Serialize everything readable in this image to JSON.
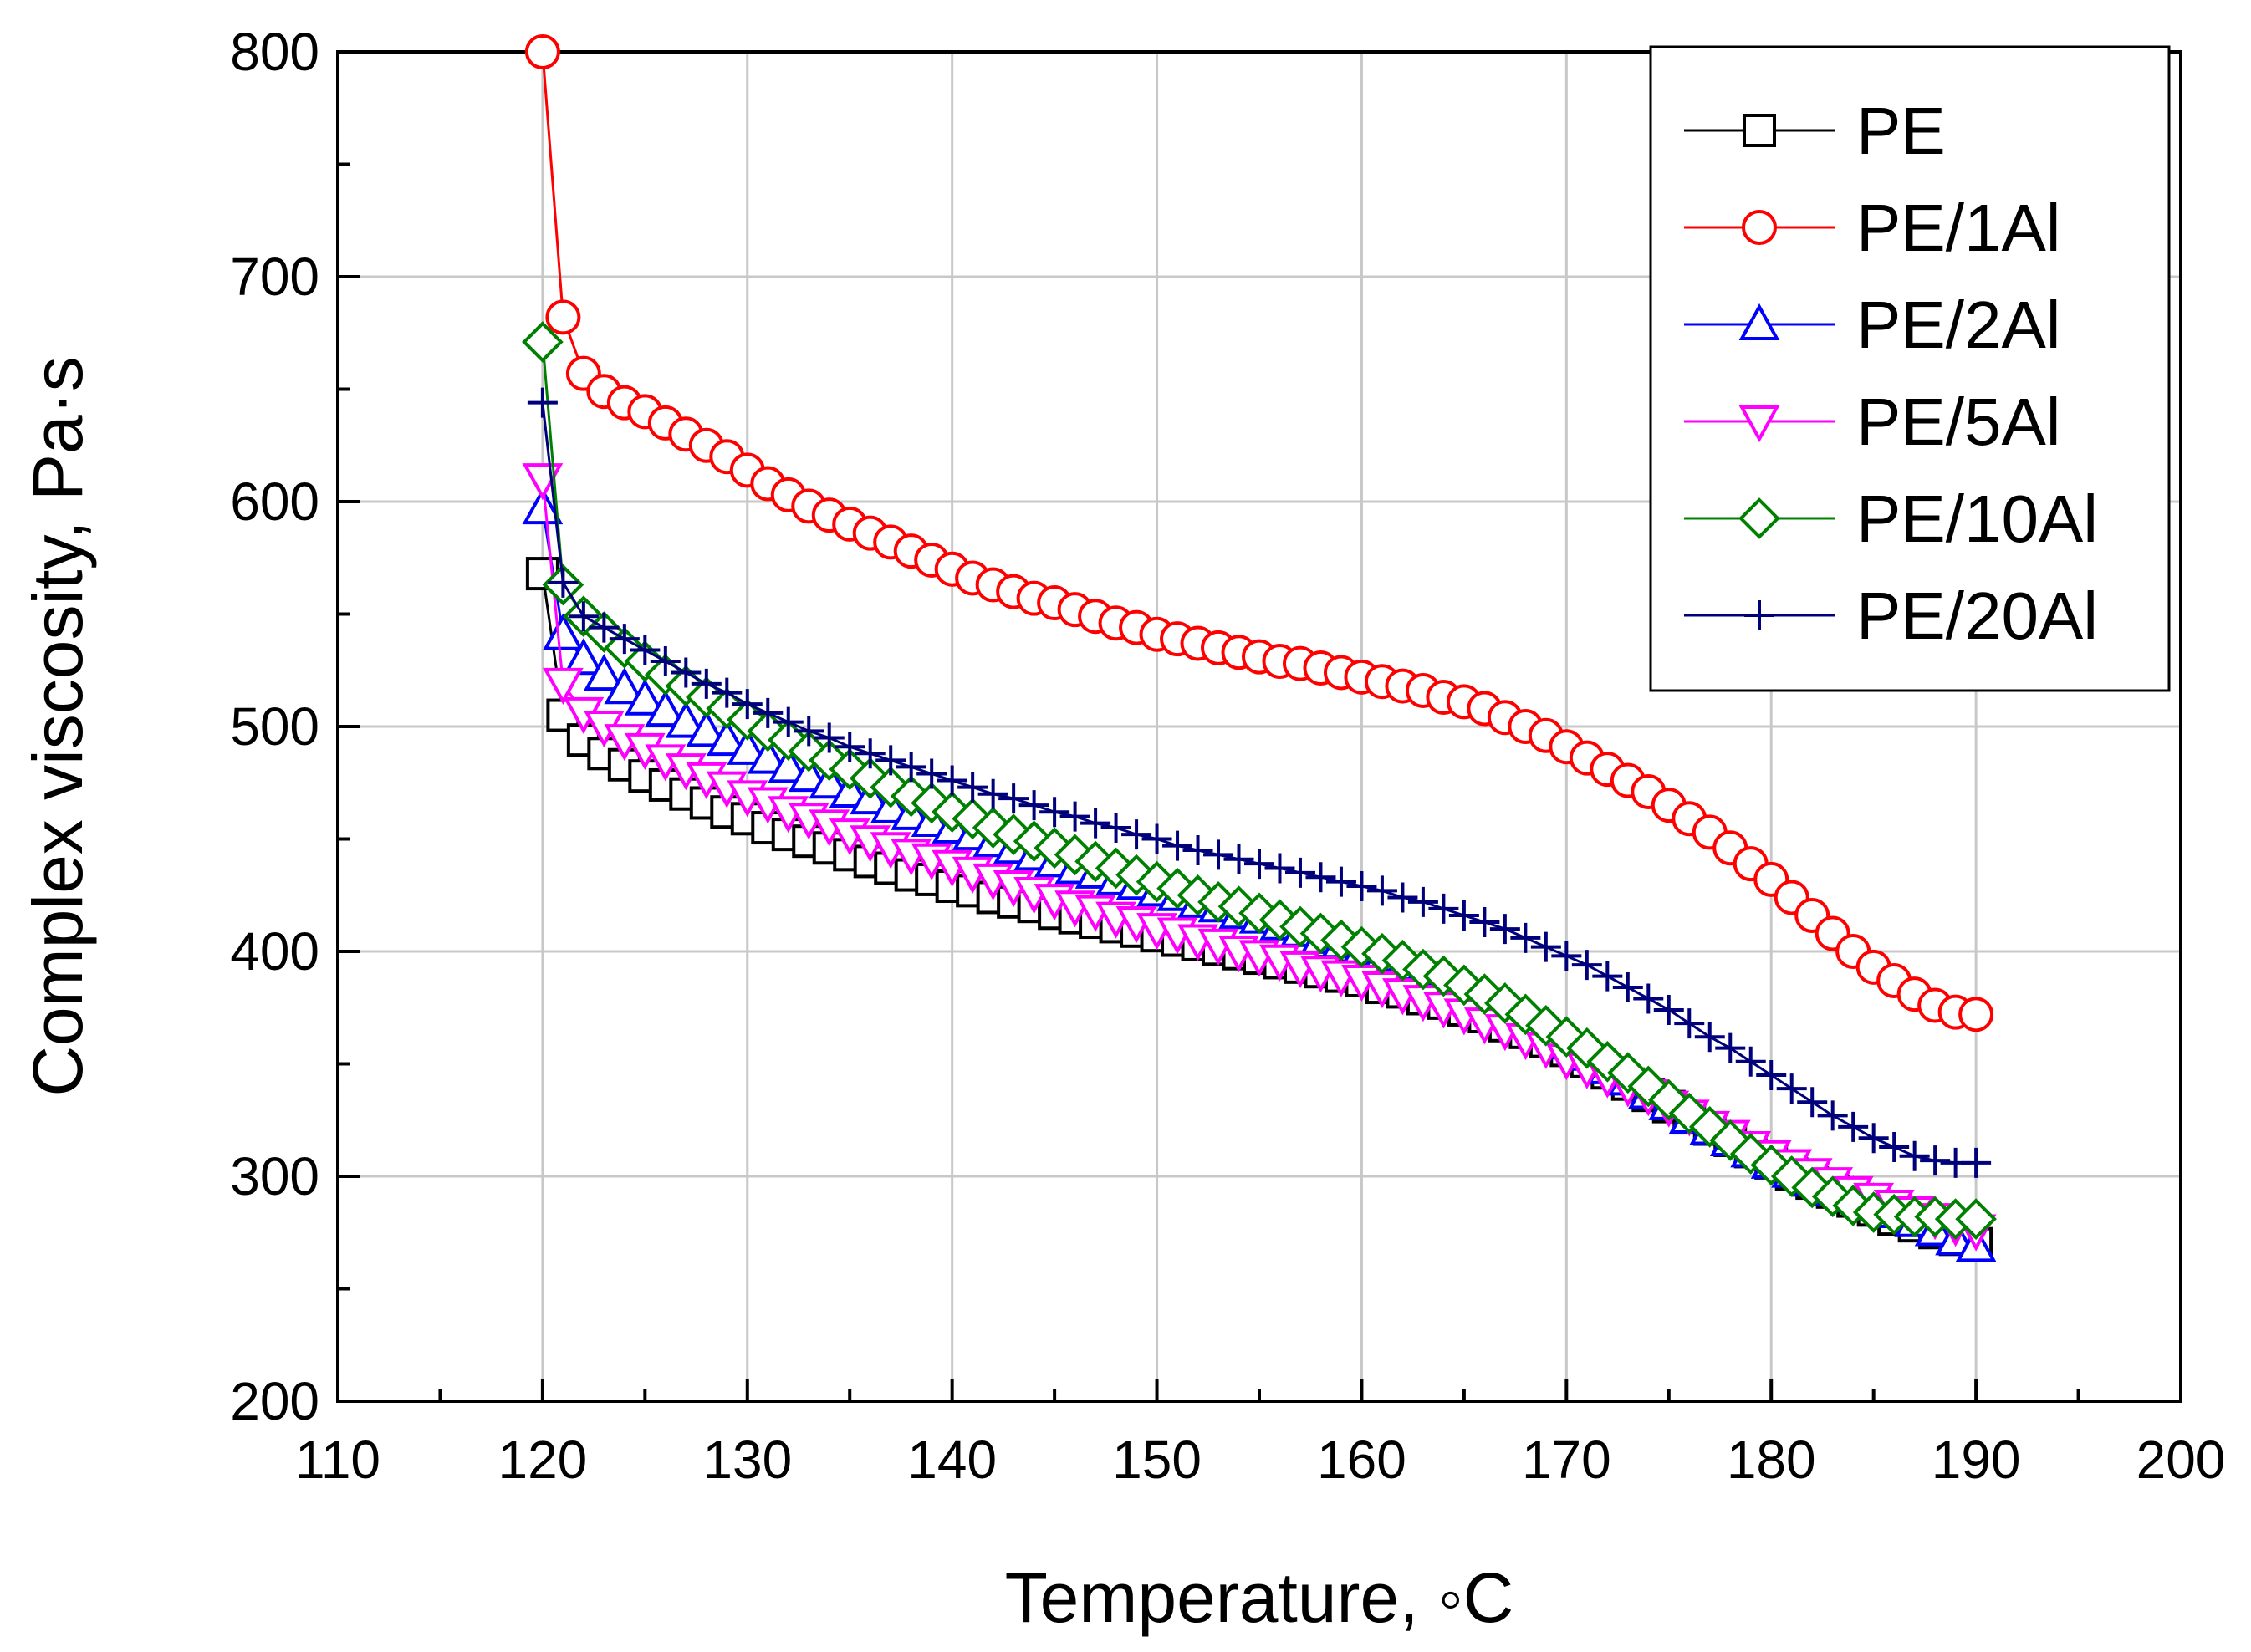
{
  "chart_data": {
    "type": "line",
    "title": "",
    "xlabel": "Temperature, ◦C",
    "ylabel": "Complex viscosity,  Pa·s",
    "xlim": [
      110,
      200
    ],
    "ylim": [
      200,
      800
    ],
    "xticks": [
      110,
      120,
      130,
      140,
      150,
      160,
      170,
      180,
      190,
      200
    ],
    "yticks": [
      200,
      300,
      400,
      500,
      600,
      700,
      800
    ],
    "grid": true,
    "legend_position": "top-right",
    "series": [
      {
        "name": "PE",
        "color": "#000000",
        "marker": "square",
        "x": [
          120,
          121,
          122,
          123,
          124,
          125,
          126,
          127,
          128,
          129,
          130,
          131,
          132,
          133,
          134,
          135,
          136,
          137,
          138,
          139,
          140,
          141,
          142,
          143,
          144,
          145,
          146,
          147,
          148,
          149,
          150,
          151,
          152,
          153,
          154,
          155,
          156,
          157,
          158,
          159,
          160,
          161,
          162,
          163,
          164,
          165,
          166,
          167,
          168,
          169,
          170,
          171,
          172,
          173,
          174,
          175,
          176,
          177,
          178,
          179,
          180,
          181,
          182,
          183,
          184,
          185,
          186,
          187,
          188,
          189,
          190
        ],
        "y": [
          568,
          505,
          494,
          488,
          483,
          478,
          474,
          470,
          466,
          462,
          459,
          455,
          452,
          449,
          446,
          443,
          440,
          437,
          434,
          432,
          429,
          427,
          424,
          422,
          420,
          417,
          415,
          413,
          411,
          409,
          407,
          405,
          403,
          401,
          399,
          397,
          395,
          393,
          391,
          389,
          387,
          384,
          382,
          379,
          377,
          374,
          371,
          367,
          364,
          360,
          356,
          351,
          346,
          341,
          336,
          331,
          326,
          321,
          316,
          311,
          306,
          301,
          297,
          293,
          289,
          285,
          281,
          278,
          275,
          272,
          270
        ]
      },
      {
        "name": "PE/1Al",
        "color": "#ff0000",
        "marker": "circle",
        "x": [
          120,
          121,
          122,
          123,
          124,
          125,
          126,
          127,
          128,
          129,
          130,
          131,
          132,
          133,
          134,
          135,
          136,
          137,
          138,
          139,
          140,
          141,
          142,
          143,
          144,
          145,
          146,
          147,
          148,
          149,
          150,
          151,
          152,
          153,
          154,
          155,
          156,
          157,
          158,
          159,
          160,
          161,
          162,
          163,
          164,
          165,
          166,
          167,
          168,
          169,
          170,
          171,
          172,
          173,
          174,
          175,
          176,
          177,
          178,
          179,
          180,
          181,
          182,
          183,
          184,
          185,
          186,
          187,
          188,
          189,
          190
        ],
        "y": [
          800,
          682,
          657,
          649,
          644,
          640,
          635,
          630,
          625,
          620,
          614,
          608,
          603,
          598,
          594,
          590,
          586,
          582,
          578,
          574,
          570,
          566,
          563,
          560,
          557,
          555,
          552,
          549,
          546,
          544,
          541,
          539,
          537,
          535,
          533,
          531,
          529,
          528,
          526,
          524,
          522,
          520,
          518,
          516,
          513,
          511,
          508,
          504,
          500,
          496,
          491,
          486,
          481,
          476,
          471,
          465,
          459,
          453,
          446,
          439,
          432,
          424,
          416,
          408,
          400,
          393,
          387,
          381,
          376,
          373,
          372
        ]
      },
      {
        "name": "PE/2Al",
        "color": "#0000ff",
        "marker": "triangle-up",
        "x": [
          120,
          121,
          122,
          123,
          124,
          125,
          126,
          127,
          128,
          129,
          130,
          131,
          132,
          133,
          134,
          135,
          136,
          137,
          138,
          139,
          140,
          141,
          142,
          143,
          144,
          145,
          146,
          147,
          148,
          149,
          150,
          151,
          152,
          153,
          154,
          155,
          156,
          157,
          158,
          159,
          160,
          161,
          162,
          163,
          164,
          165,
          166,
          167,
          168,
          169,
          170,
          171,
          172,
          173,
          174,
          175,
          176,
          177,
          178,
          179,
          180,
          181,
          182,
          183,
          184,
          185,
          186,
          187,
          188,
          189,
          190
        ],
        "y": [
          597,
          541,
          530,
          523,
          517,
          512,
          507,
          502,
          498,
          494,
          490,
          486,
          482,
          478,
          475,
          471,
          468,
          464,
          461,
          458,
          455,
          452,
          449,
          446,
          443,
          440,
          437,
          435,
          432,
          430,
          427,
          425,
          422,
          420,
          417,
          415,
          412,
          409,
          406,
          404,
          401,
          398,
          394,
          391,
          388,
          384,
          380,
          375,
          370,
          365,
          359,
          354,
          348,
          343,
          337,
          332,
          326,
          321,
          316,
          311,
          306,
          302,
          298,
          294,
          291,
          288,
          284,
          280,
          276,
          272,
          269
        ]
      },
      {
        "name": "PE/5Al",
        "color": "#ff00ff",
        "marker": "triangle-down",
        "x": [
          120,
          121,
          122,
          123,
          124,
          125,
          126,
          127,
          128,
          129,
          130,
          131,
          132,
          133,
          134,
          135,
          136,
          137,
          138,
          139,
          140,
          141,
          142,
          143,
          144,
          145,
          146,
          147,
          148,
          149,
          150,
          151,
          152,
          153,
          154,
          155,
          156,
          157,
          158,
          159,
          160,
          161,
          162,
          163,
          164,
          165,
          166,
          167,
          168,
          169,
          170,
          171,
          172,
          173,
          174,
          175,
          176,
          177,
          178,
          179,
          180,
          181,
          182,
          183,
          184,
          185,
          186,
          187,
          188,
          189,
          190
        ],
        "y": [
          610,
          519,
          506,
          500,
          494,
          490,
          485,
          481,
          477,
          473,
          469,
          466,
          462,
          459,
          456,
          452,
          449,
          446,
          443,
          441,
          438,
          435,
          432,
          429,
          426,
          423,
          420,
          418,
          415,
          413,
          410,
          408,
          405,
          403,
          400,
          398,
          396,
          393,
          391,
          389,
          387,
          384,
          381,
          378,
          375,
          372,
          368,
          365,
          361,
          357,
          352,
          348,
          344,
          340,
          336,
          331,
          327,
          322,
          318,
          313,
          309,
          305,
          301,
          297,
          293,
          290,
          287,
          284,
          281,
          278,
          276
        ]
      },
      {
        "name": "PE/10Al",
        "color": "#008000",
        "marker": "diamond",
        "x": [
          120,
          121,
          122,
          123,
          124,
          125,
          126,
          127,
          128,
          129,
          130,
          131,
          132,
          133,
          134,
          135,
          136,
          137,
          138,
          139,
          140,
          141,
          142,
          143,
          144,
          145,
          146,
          147,
          148,
          149,
          150,
          151,
          152,
          153,
          154,
          155,
          156,
          157,
          158,
          159,
          160,
          161,
          162,
          163,
          164,
          165,
          166,
          167,
          168,
          169,
          170,
          171,
          172,
          173,
          174,
          175,
          176,
          177,
          178,
          179,
          180,
          181,
          182,
          183,
          184,
          185,
          186,
          187,
          188,
          189,
          190
        ],
        "y": [
          671,
          563,
          549,
          542,
          535,
          529,
          523,
          518,
          513,
          508,
          503,
          498,
          494,
          489,
          485,
          481,
          477,
          473,
          469,
          466,
          462,
          459,
          455,
          452,
          449,
          446,
          443,
          440,
          437,
          434,
          431,
          428,
          425,
          422,
          420,
          417,
          414,
          411,
          408,
          405,
          402,
          399,
          396,
          392,
          389,
          385,
          381,
          377,
          372,
          367,
          362,
          357,
          351,
          346,
          340,
          334,
          328,
          322,
          316,
          310,
          305,
          300,
          295,
          291,
          287,
          284,
          283,
          282,
          282,
          281,
          281
        ]
      },
      {
        "name": "PE/20Al",
        "color": "#00007a",
        "marker": "plus",
        "x": [
          120,
          121,
          122,
          123,
          124,
          125,
          126,
          127,
          128,
          129,
          130,
          131,
          132,
          133,
          134,
          135,
          136,
          137,
          138,
          139,
          140,
          141,
          142,
          143,
          144,
          145,
          146,
          147,
          148,
          149,
          150,
          151,
          152,
          153,
          154,
          155,
          156,
          157,
          158,
          159,
          160,
          161,
          162,
          163,
          164,
          165,
          166,
          167,
          168,
          169,
          170,
          171,
          172,
          173,
          174,
          175,
          176,
          177,
          178,
          179,
          180,
          181,
          182,
          183,
          184,
          185,
          186,
          187,
          188,
          189,
          190
        ],
        "y": [
          644,
          564,
          549,
          544,
          539,
          534,
          529,
          524,
          519,
          515,
          510,
          506,
          502,
          498,
          495,
          491,
          488,
          485,
          482,
          479,
          476,
          473,
          470,
          468,
          465,
          462,
          460,
          457,
          455,
          452,
          450,
          447,
          445,
          443,
          441,
          439,
          437,
          435,
          433,
          431,
          429,
          427,
          424,
          422,
          419,
          416,
          413,
          410,
          406,
          402,
          398,
          394,
          389,
          384,
          379,
          374,
          368,
          362,
          357,
          351,
          345,
          339,
          333,
          327,
          322,
          317,
          313,
          309,
          307,
          306,
          306
        ]
      }
    ]
  }
}
